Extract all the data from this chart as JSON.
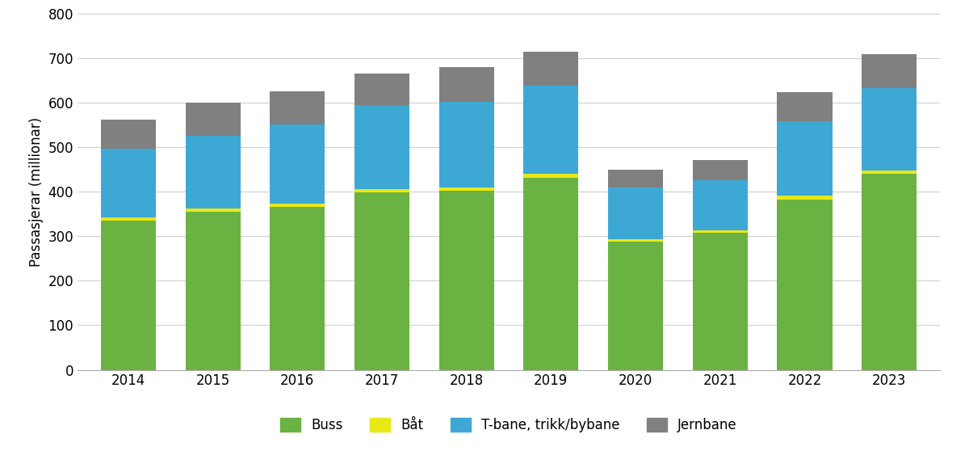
{
  "years": [
    "2014",
    "2015",
    "2016",
    "2017",
    "2018",
    "2019",
    "2020",
    "2021",
    "2022",
    "2023"
  ],
  "buss": [
    335,
    355,
    365,
    398,
    402,
    432,
    288,
    308,
    383,
    440
  ],
  "bat": [
    7,
    8,
    8,
    8,
    8,
    8,
    6,
    6,
    8,
    8
  ],
  "tbane": [
    155,
    162,
    177,
    188,
    192,
    198,
    115,
    112,
    168,
    185
  ],
  "jernbane": [
    65,
    75,
    75,
    71,
    78,
    77,
    40,
    45,
    65,
    75
  ],
  "colors": {
    "buss": "#6ab241",
    "bat": "#e8e817",
    "tbane": "#3ea8d5",
    "jernbane": "#808080"
  },
  "ylabel": "Passasjerar (millionar)",
  "ylim": [
    0,
    800
  ],
  "yticks": [
    0,
    100,
    200,
    300,
    400,
    500,
    600,
    700,
    800
  ],
  "legend_labels": [
    "Buss",
    "Båt",
    "T-bane, trikk/bybane",
    "Jernbane"
  ],
  "background_color": "#ffffff",
  "grid_color": "#d0d0d0",
  "bar_width": 0.65
}
